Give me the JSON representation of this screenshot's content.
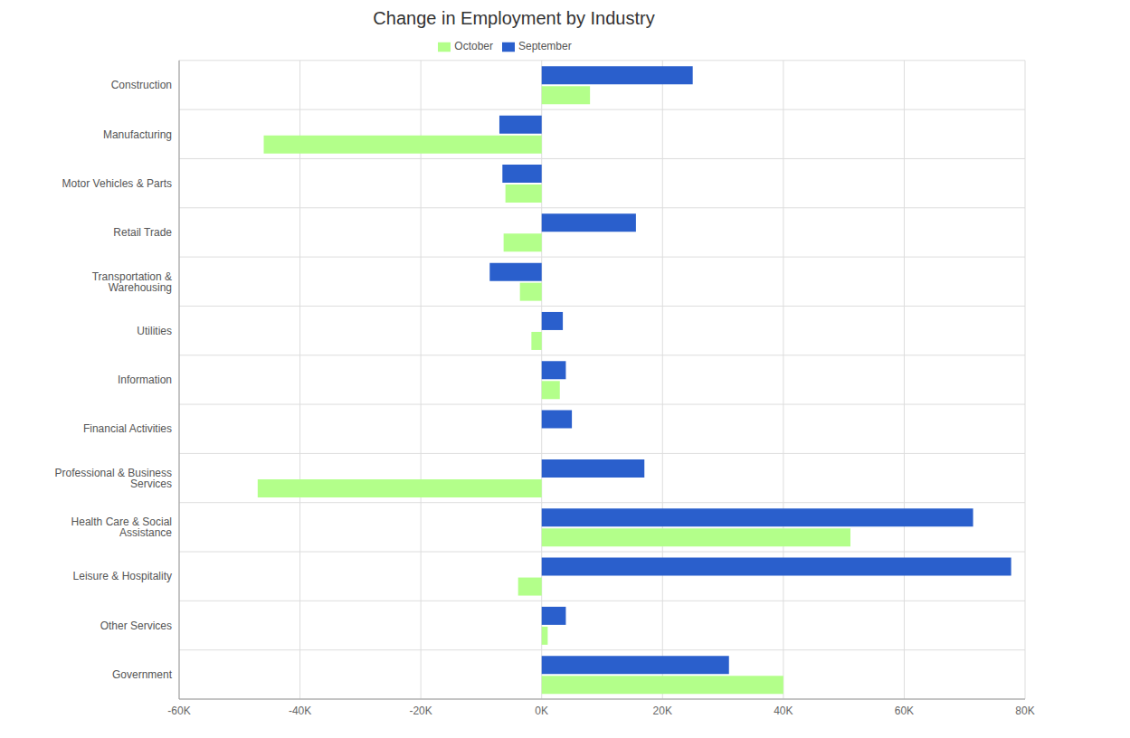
{
  "chart_data": {
    "type": "bar",
    "title": "Change in Employment by Industry",
    "orientation": "horizontal",
    "grid": true,
    "legend": "top",
    "categories": [
      "Construction",
      "Manufacturing",
      "Motor Vehicles & Parts",
      "Retail Trade",
      "Transportation & Warehousing",
      "Utilities",
      "Information",
      "Financial Activities",
      "Professional & Business Services",
      "Health Care & Social Assistance",
      "Leisure & Hospitality",
      "Other Services",
      "Government"
    ],
    "series": [
      {
        "name": "September",
        "color": "#2a5fcc",
        "values": [
          25000,
          -7000,
          -6500,
          15600,
          -8600,
          3500,
          4000,
          5000,
          17000,
          71400,
          77700,
          4000,
          31000
        ]
      },
      {
        "name": "October",
        "color": "#b3ff8a",
        "values": [
          8000,
          -46000,
          -6000,
          -6300,
          -3600,
          -1700,
          3000,
          0,
          -47000,
          51100,
          -3900,
          1000,
          40000
        ]
      }
    ],
    "xlim": [
      -60000,
      80000
    ],
    "xticks": [
      {
        "value": -60000,
        "label": "-60K"
      },
      {
        "value": -40000,
        "label": "-40K"
      },
      {
        "value": -20000,
        "label": "-20K"
      },
      {
        "value": 0,
        "label": "0K"
      },
      {
        "value": 20000,
        "label": "20K"
      },
      {
        "value": 40000,
        "label": "40K"
      },
      {
        "value": 60000,
        "label": "60K"
      },
      {
        "value": 80000,
        "label": "80K"
      }
    ]
  }
}
